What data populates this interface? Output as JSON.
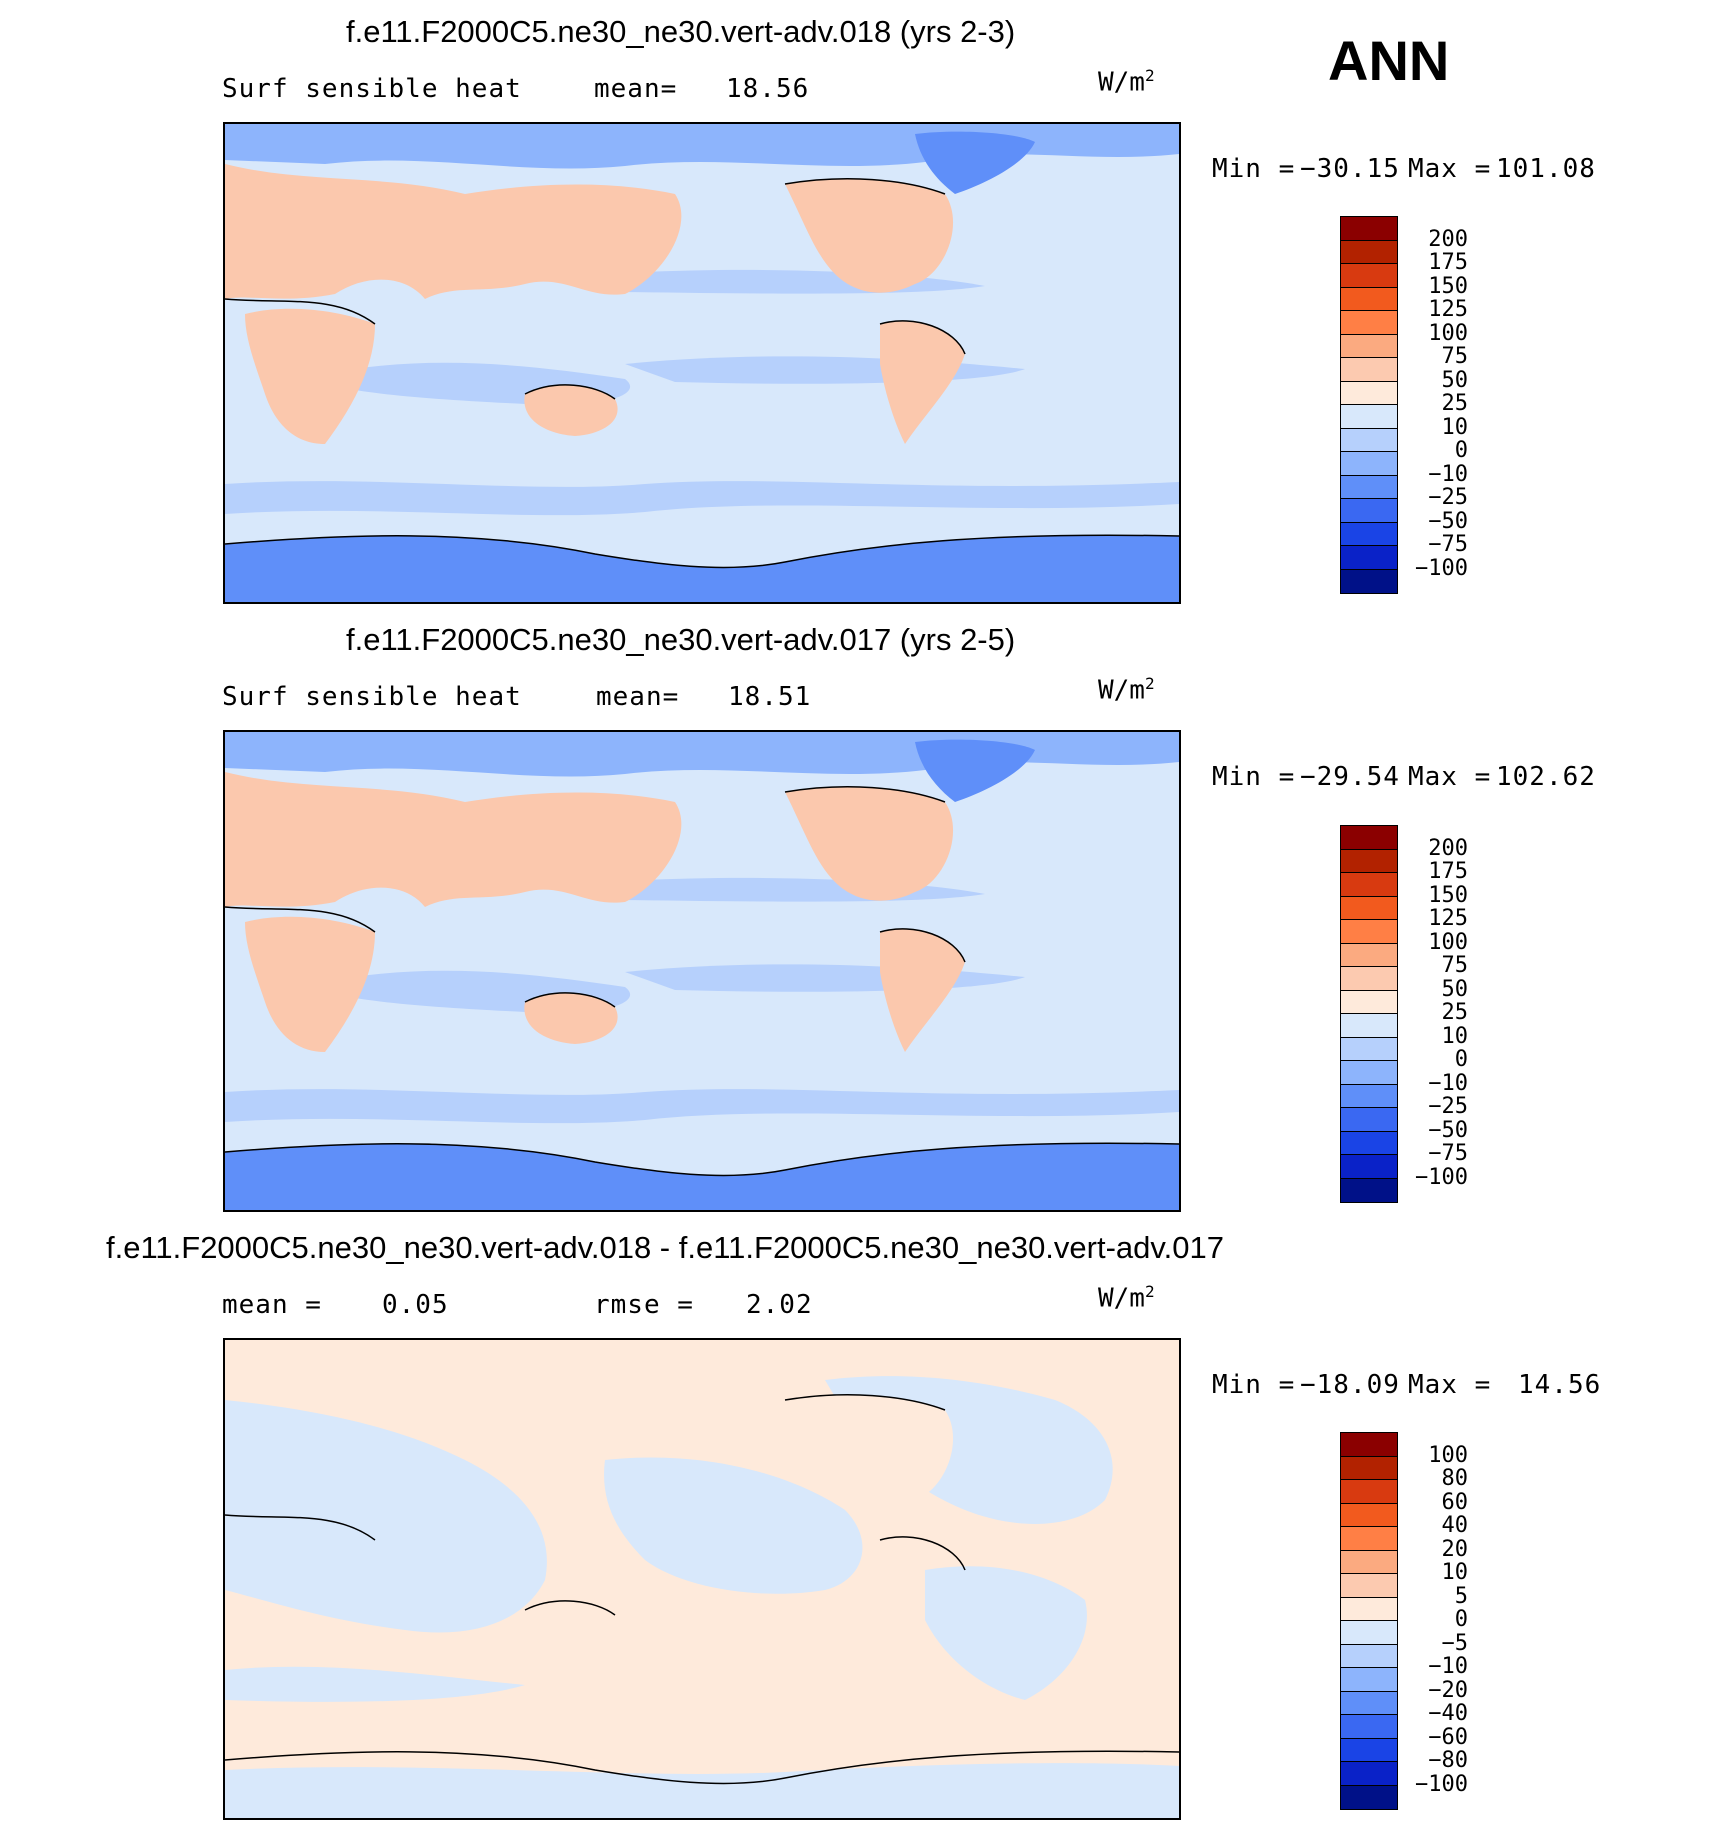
{
  "season": "ANN",
  "units_text": "W/m",
  "units_sup": "2",
  "panels": [
    {
      "title": "f.e11.F2000C5.ne30_ne30.vert-adv.018 (yrs 2-3)",
      "var_label": "Surf sensible heat",
      "stat_left": "",
      "stat_right_label": "mean=",
      "stat_right_value": "18.56",
      "min_label": "Min = ",
      "min_value": "−30.15",
      "max_label": "Max = ",
      "max_value": "101.08",
      "levels": [
        "200",
        "175",
        "150",
        "125",
        "100",
        "75",
        "50",
        "25",
        "10",
        "0",
        "−10",
        "−25",
        "−50",
        "−75",
        "−100"
      ]
    },
    {
      "title": "f.e11.F2000C5.ne30_ne30.vert-adv.017 (yrs 2-5)",
      "var_label": "Surf sensible heat",
      "stat_left": "",
      "stat_right_label": "mean=",
      "stat_right_value": "18.51",
      "min_label": "Min = ",
      "min_value": "−29.54",
      "max_label": "Max = ",
      "max_value": "102.62",
      "levels": [
        "200",
        "175",
        "150",
        "125",
        "100",
        "75",
        "50",
        "25",
        "10",
        "0",
        "−10",
        "−25",
        "−50",
        "−75",
        "−100"
      ]
    },
    {
      "title": "f.e11.F2000C5.ne30_ne30.vert-adv.018 - f.e11.F2000C5.ne30_ne30.vert-adv.017",
      "var_label": "mean =",
      "var_value": "0.05",
      "stat_right_label": "rmse =",
      "stat_right_value": "2.02",
      "min_label": "Min = ",
      "min_value": "−18.09",
      "max_label": "Max = ",
      "max_value": "14.56",
      "levels": [
        "100",
        "80",
        "60",
        "40",
        "20",
        "10",
        "5",
        "0",
        "−5",
        "−10",
        "−20",
        "−40",
        "−60",
        "−80",
        "−100"
      ]
    }
  ],
  "colorbar_colors": [
    "#8b0000",
    "#b22200",
    "#d83a10",
    "#f25a1e",
    "#ff7f45",
    "#fbaa80",
    "#fccab0",
    "#feeadb",
    "#d8e8fb",
    "#b6d0fc",
    "#8db4fc",
    "#5f8ff9",
    "#3a68f2",
    "#1a44e6",
    "#0a22c8",
    "#001188"
  ],
  "field_colors": {
    "land_warm": "#fbc8ad",
    "land_mild": "#feeadb",
    "ocean_light": "#d8e8fb",
    "ocean_mid": "#b6d0fc",
    "ice_cold": "#5f8ff9",
    "ice_mid": "#8db4fc"
  }
}
